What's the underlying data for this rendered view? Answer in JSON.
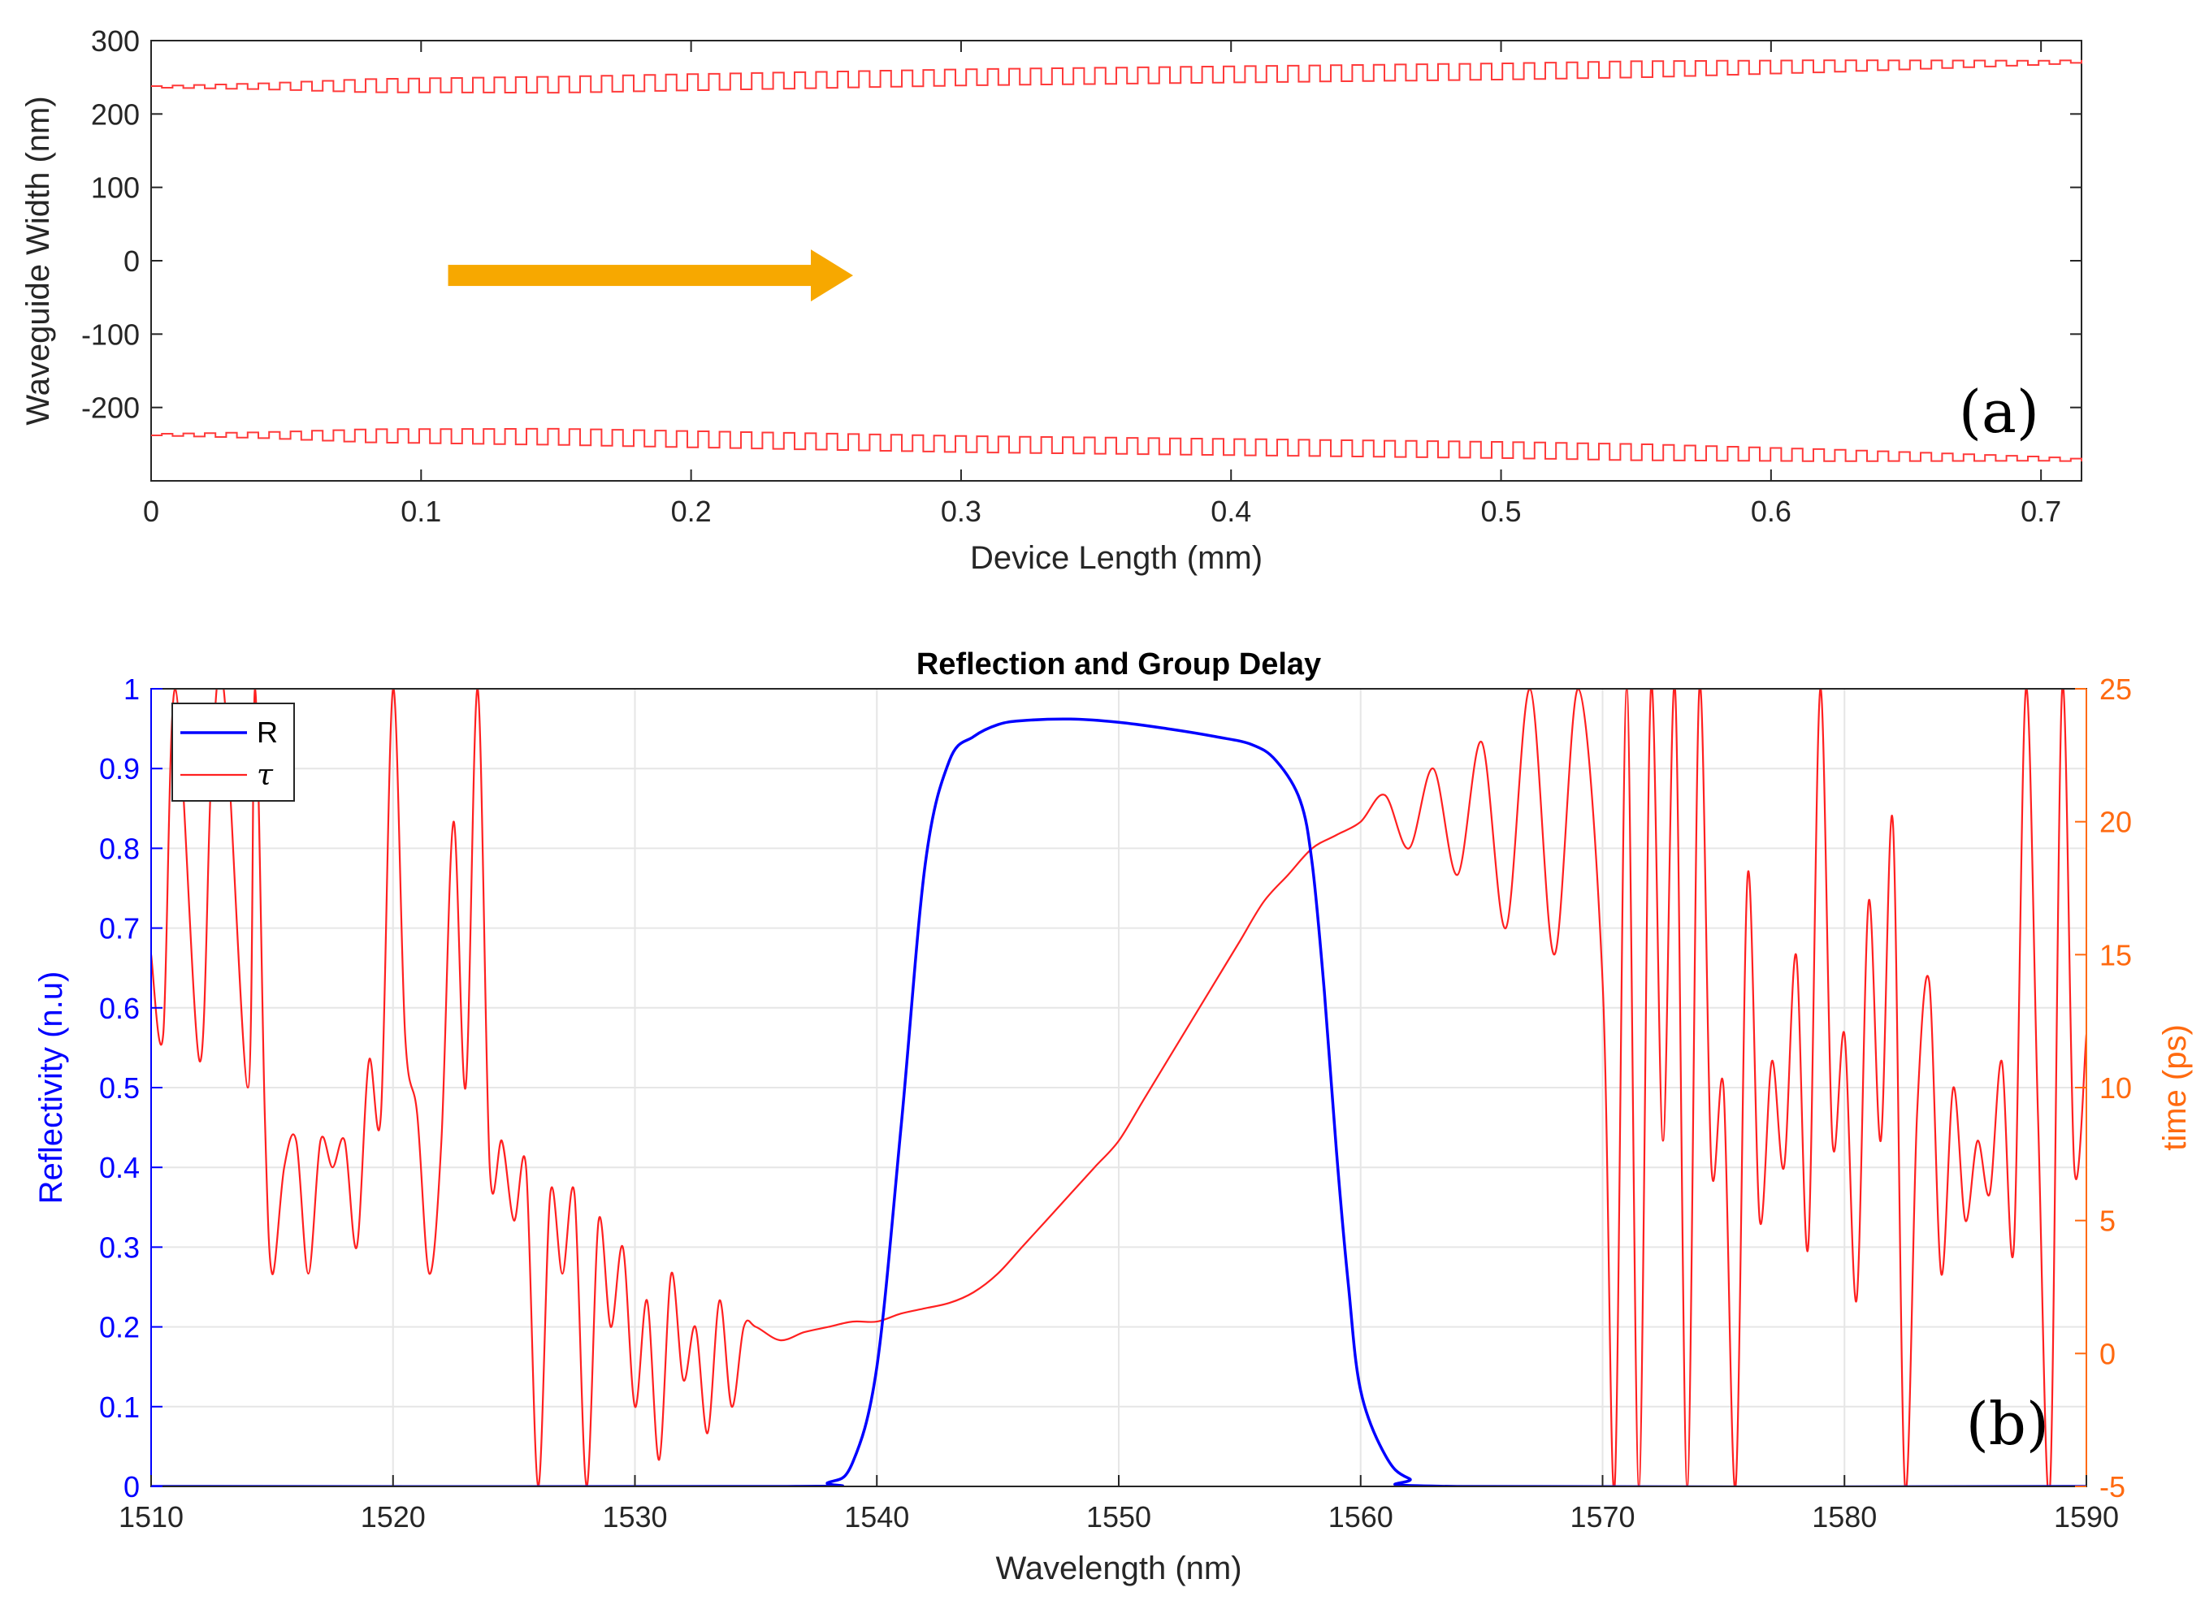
{
  "colors": {
    "width_trace": "#ff3a3a",
    "reflectivity": "#0000ff",
    "delay": "#ff2020",
    "right_axis": "#ff6a10",
    "arrow": "#f7a800",
    "axis": "#262626",
    "grid": "#e6e6e6"
  },
  "chart_data": [
    {
      "type": "line",
      "panel_label": "(a)",
      "title": "",
      "xlabel": "Device Length  (mm)",
      "ylabel": "Waveguide Width  (nm)",
      "xlim": [
        0,
        0.715
      ],
      "ylim": [
        -300,
        300
      ],
      "x_ticks": [
        0,
        0.1,
        0.2,
        0.3,
        0.4,
        0.5,
        0.6,
        0.7
      ],
      "y_ticks": [
        300,
        200,
        100,
        0,
        -100,
        -200
      ],
      "grid": false,
      "arrow": {
        "from": [
          0.11,
          -20
        ],
        "to": [
          0.26,
          -20
        ]
      },
      "series": [
        {
          "profile": "square-wave grating, width apodized (weak at both ends), centre rises with length",
          "upper_centre": [
            [
              0,
              237
            ],
            [
              0.15,
              240
            ],
            [
              0.3,
              250
            ],
            [
              0.5,
              258
            ],
            [
              0.7,
              270
            ],
            [
              0.715,
              272
            ]
          ],
          "lower_centre": [
            [
              0,
              -237
            ],
            [
              0.15,
              -240
            ],
            [
              0.3,
              -250
            ],
            [
              0.5,
              -258
            ],
            [
              0.7,
              -270
            ],
            [
              0.715,
              -272
            ]
          ],
          "amplitude_envelope": [
            [
              0,
              2
            ],
            [
              0.04,
              8
            ],
            [
              0.08,
              18
            ],
            [
              0.15,
              22
            ],
            [
              0.55,
              22
            ],
            [
              0.62,
              16
            ],
            [
              0.68,
              8
            ],
            [
              0.715,
              3
            ]
          ],
          "periods": 90
        }
      ]
    },
    {
      "type": "line",
      "panel_label": "(b)",
      "title": "Reflection and Group Delay",
      "xlabel": "Wavelength  (nm)",
      "ylabel": "Reflectivity  (n.u)",
      "y2label": "time  (ps)",
      "xlim": [
        1510,
        1590
      ],
      "ylim": [
        0,
        1
      ],
      "y2lim": [
        -5,
        25
      ],
      "x_ticks": [
        1510,
        1520,
        1530,
        1540,
        1550,
        1560,
        1570,
        1580,
        1590
      ],
      "y_ticks": [
        0,
        0.1,
        0.2,
        0.3,
        0.4,
        0.5,
        0.6,
        0.7,
        0.8,
        0.9,
        1
      ],
      "y2_ticks": [
        -5,
        0,
        5,
        10,
        15,
        20,
        25
      ],
      "grid": true,
      "legend": {
        "position": "top-left",
        "entries": [
          "R",
          "τ"
        ]
      },
      "series": [
        {
          "name": "R",
          "axis": "left",
          "x": [
            1510,
            1536,
            1538,
            1539,
            1540,
            1541,
            1542,
            1543,
            1544,
            1545,
            1546,
            1548,
            1550,
            1552,
            1554,
            1555.5,
            1556.5,
            1557.5,
            1558,
            1558.5,
            1559,
            1559.5,
            1560,
            1561,
            1562,
            1564,
            1590
          ],
          "values": [
            0,
            0,
            0.005,
            0.03,
            0.15,
            0.45,
            0.78,
            0.91,
            0.94,
            0.955,
            0.96,
            0.962,
            0.958,
            0.95,
            0.94,
            0.93,
            0.91,
            0.86,
            0.78,
            0.62,
            0.42,
            0.25,
            0.12,
            0.04,
            0.01,
            0,
            0
          ]
        },
        {
          "name": "τ",
          "axis": "right",
          "x": [
            1510,
            1510.5,
            1511,
            1512,
            1512.5,
            1513,
            1514,
            1514.3,
            1514.7,
            1515,
            1515.5,
            1516,
            1516.5,
            1517,
            1517.5,
            1518,
            1518.5,
            1519,
            1519.5,
            1520,
            1520.5,
            1521,
            1521.5,
            1522,
            1522.5,
            1523,
            1523.5,
            1524,
            1524.5,
            1525,
            1525.5,
            1526,
            1526.5,
            1527,
            1527.5,
            1528,
            1528.5,
            1529,
            1529.5,
            1530,
            1530.5,
            1531,
            1531.5,
            1532,
            1532.5,
            1533,
            1533.5,
            1534,
            1534.5,
            1535,
            1536,
            1537,
            1538,
            1539,
            1540,
            1541,
            1542,
            1543,
            1544,
            1545,
            1546,
            1547,
            1548,
            1549,
            1550,
            1551,
            1552,
            1553,
            1554,
            1555,
            1556,
            1557,
            1558,
            1559,
            1560,
            1561,
            1562,
            1563,
            1564,
            1565,
            1566,
            1567,
            1568,
            1569,
            1570,
            1570.5,
            1571,
            1571.5,
            1572,
            1572.5,
            1573,
            1573.5,
            1574,
            1574.5,
            1575,
            1575.5,
            1576,
            1576.5,
            1577,
            1577.5,
            1578,
            1578.5,
            1579,
            1579.5,
            1580,
            1580.5,
            1581,
            1581.5,
            1582,
            1582.5,
            1583,
            1583.5,
            1584,
            1584.5,
            1585,
            1585.5,
            1586,
            1586.5,
            1587,
            1587.5,
            1588,
            1588.5,
            1589,
            1589.5,
            1590
          ],
          "values": [
            15,
            12,
            25,
            11,
            22,
            25,
            10,
            25,
            9,
            3,
            7,
            8,
            3,
            8,
            7,
            8,
            4,
            11,
            9,
            25,
            12,
            9,
            3,
            8,
            20,
            10,
            25,
            7,
            8,
            5,
            7,
            -5,
            6,
            3,
            6,
            -5,
            5,
            1,
            4,
            -2,
            2,
            -4,
            3,
            -1,
            1,
            -3,
            2,
            -2,
            1,
            1,
            0.5,
            0.8,
            1,
            1.2,
            1.2,
            1.5,
            1.7,
            1.9,
            2.3,
            3,
            4,
            5,
            6,
            7,
            8,
            9.5,
            11,
            12.5,
            14,
            15.5,
            17,
            18,
            19,
            19.5,
            20,
            21,
            19,
            22,
            18,
            23,
            16,
            25,
            15,
            25,
            14,
            -5,
            25,
            -5,
            25,
            8,
            25,
            -5,
            25,
            7,
            10,
            -5,
            18,
            5,
            11,
            7,
            15,
            4,
            25,
            8,
            12,
            2,
            17,
            8,
            20,
            -5,
            9,
            14,
            3,
            10,
            5,
            8,
            6,
            11,
            4,
            25,
            9,
            -5,
            25,
            7,
            12
          ]
        }
      ]
    }
  ]
}
